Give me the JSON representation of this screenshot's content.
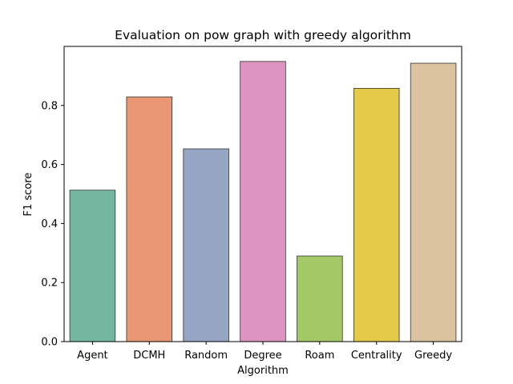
{
  "chart_data": {
    "type": "bar",
    "title": "Evaluation on pow graph with greedy algorithm",
    "xlabel": "Algorithm",
    "ylabel": "F1 score",
    "categories": [
      "Agent",
      "DCMH",
      "Random",
      "Degree",
      "Roam",
      "Centrality",
      "Greedy"
    ],
    "values": [
      0.513,
      0.829,
      0.653,
      0.949,
      0.29,
      0.858,
      0.943
    ],
    "colors": [
      "#74b7a0",
      "#e99873",
      "#96a5c4",
      "#dd94c0",
      "#a3c966",
      "#e5c949",
      "#dbc39f"
    ],
    "ylim": [
      0,
      1.0
    ],
    "yticks": [
      0.0,
      0.2,
      0.4,
      0.6,
      0.8
    ],
    "ytick_labels": [
      "0.0",
      "0.2",
      "0.4",
      "0.6",
      "0.8"
    ],
    "grid": false,
    "legend": "none"
  }
}
